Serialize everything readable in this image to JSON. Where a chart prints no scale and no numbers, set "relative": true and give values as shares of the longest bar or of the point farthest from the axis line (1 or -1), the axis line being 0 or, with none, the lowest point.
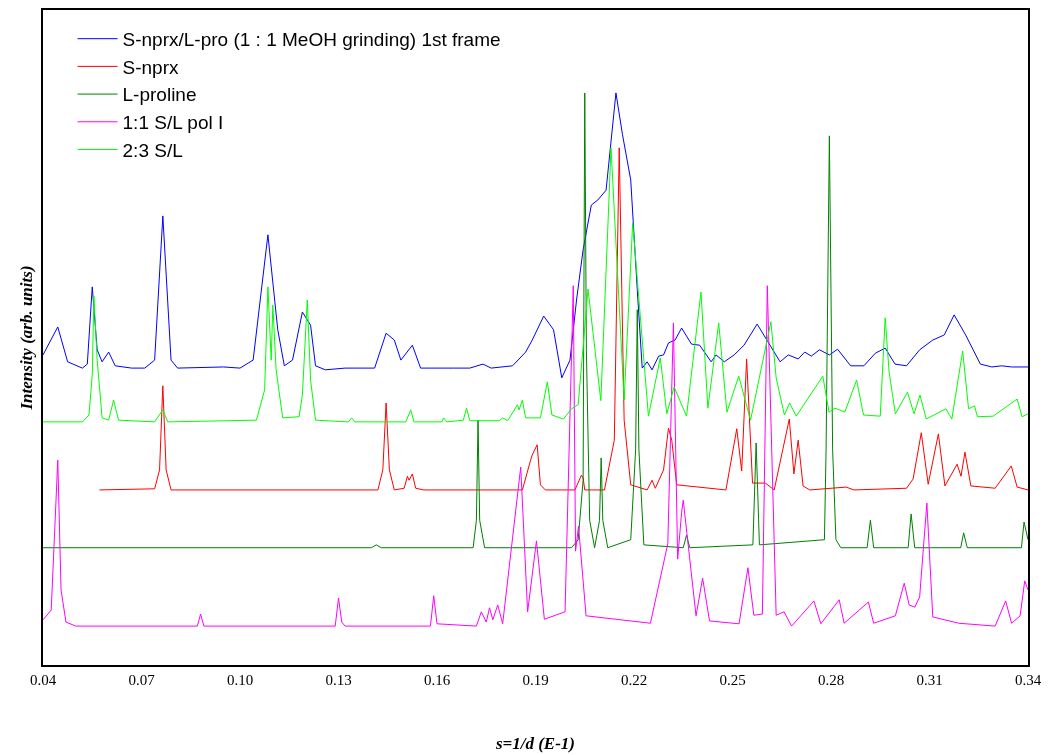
{
  "chart_data": {
    "type": "line",
    "relative": true,
    "xlabel": "s=1/d (E-1)",
    "ylabel": "Intensity (arb. units)",
    "xlim": [
      0.04,
      0.34
    ],
    "xticks": [
      0.04,
      0.07,
      {
        "value": 0.1,
        "label": "0.10"
      },
      0.13,
      0.16,
      0.19,
      0.22,
      0.25,
      0.28,
      0.31,
      0.34
    ],
    "grid": false,
    "legend": "top left",
    "marker": "none",
    "line_style": "solid",
    "series": [
      {
        "name": "S-nprx/L-pro (1 : 1 MeOH grinding) 1st frame",
        "color": "#0000ff",
        "x": [
          0.04,
          0.0445,
          0.0475,
          0.052,
          0.0535,
          0.055,
          0.0565,
          0.058,
          0.06,
          0.062,
          0.067,
          0.071,
          0.074,
          0.0765,
          0.079,
          0.081,
          0.095,
          0.1,
          0.104,
          0.1085,
          0.1115,
          0.1135,
          0.116,
          0.119,
          0.1215,
          0.123,
          0.126,
          0.132,
          0.141,
          0.1445,
          0.147,
          0.149,
          0.1525,
          0.155,
          0.165,
          0.17,
          0.174,
          0.1765,
          0.183,
          0.187,
          0.189,
          0.1925,
          0.1955,
          0.198,
          0.2005,
          0.2025,
          0.2045,
          0.207,
          0.209,
          0.2115,
          0.2145,
          0.2165,
          0.219,
          0.221,
          0.2225,
          0.224,
          0.2255,
          0.2275,
          0.229,
          0.2305,
          0.2325,
          0.2345,
          0.2375,
          0.24,
          0.2435,
          0.245,
          0.2475,
          0.2505,
          0.2535,
          0.2575,
          0.261,
          0.2645,
          0.267,
          0.27,
          0.272,
          0.274,
          0.2765,
          0.2795,
          0.282,
          0.286,
          0.29,
          0.2935,
          0.2965,
          0.2995,
          0.303,
          0.307,
          0.311,
          0.3145,
          0.3175,
          0.321,
          0.3255,
          0.329,
          0.332,
          0.335,
          0.34
        ],
        "values": [
          0.542,
          0.591,
          0.53,
          0.519,
          0.526,
          0.661,
          0.551,
          0.53,
          0.547,
          0.523,
          0.519,
          0.519,
          0.533,
          0.785,
          0.533,
          0.519,
          0.521,
          0.519,
          0.533,
          0.752,
          0.586,
          0.523,
          0.533,
          0.617,
          0.594,
          0.523,
          0.516,
          0.519,
          0.519,
          0.58,
          0.568,
          0.533,
          0.559,
          0.519,
          0.519,
          0.519,
          0.526,
          0.519,
          0.523,
          0.547,
          0.568,
          0.61,
          0.586,
          0.502,
          0.533,
          0.638,
          0.726,
          0.804,
          0.813,
          0.83,
          1.0,
          0.927,
          0.848,
          0.656,
          0.519,
          0.53,
          0.516,
          0.54,
          0.542,
          0.563,
          0.568,
          0.589,
          0.561,
          0.559,
          0.53,
          0.542,
          0.53,
          0.542,
          0.559,
          0.596,
          0.563,
          0.53,
          0.542,
          0.535,
          0.547,
          0.54,
          0.551,
          0.542,
          0.552,
          0.523,
          0.523,
          0.545,
          0.554,
          0.526,
          0.523,
          0.551,
          0.568,
          0.577,
          0.612,
          0.577,
          0.526,
          0.521,
          0.523,
          0.521,
          0.521
        ]
      },
      {
        "name": "S-nprx",
        "color": "#ff0000",
        "x": [
          0.0572,
          0.074,
          0.0755,
          0.0765,
          0.0775,
          0.079,
          0.142,
          0.1435,
          0.1445,
          0.1455,
          0.147,
          0.15,
          0.151,
          0.1515,
          0.1525,
          0.1535,
          0.156,
          0.186,
          0.1885,
          0.189,
          0.1905,
          0.1915,
          0.193,
          0.202,
          0.204,
          0.2045,
          0.205,
          0.211,
          0.214,
          0.2155,
          0.217,
          0.219,
          0.224,
          0.2255,
          0.2265,
          0.229,
          0.2305,
          0.2315,
          0.233,
          0.248,
          0.2513,
          0.2528,
          0.2543,
          0.2561,
          0.26,
          0.2627,
          0.2673,
          0.2687,
          0.27,
          0.2715,
          0.2735,
          0.2846,
          0.287,
          0.303,
          0.305,
          0.3075,
          0.3096,
          0.3127,
          0.3147,
          0.3184,
          0.3196,
          0.3208,
          0.3226,
          0.33,
          0.3349,
          0.3367,
          0.34
        ],
        "values": [
          0.306,
          0.308,
          0.341,
          0.488,
          0.341,
          0.306,
          0.306,
          0.341,
          0.458,
          0.341,
          0.306,
          0.309,
          0.33,
          0.323,
          0.334,
          0.309,
          0.306,
          0.306,
          0.358,
          0.367,
          0.385,
          0.315,
          0.306,
          0.306,
          0.332,
          0.327,
          0.306,
          0.306,
          0.393,
          0.904,
          0.428,
          0.315,
          0.306,
          0.323,
          0.309,
          0.341,
          0.414,
          0.393,
          0.315,
          0.306,
          0.413,
          0.339,
          0.535,
          0.318,
          0.318,
          0.306,
          0.43,
          0.334,
          0.393,
          0.313,
          0.306,
          0.311,
          0.306,
          0.309,
          0.325,
          0.406,
          0.316,
          0.404,
          0.313,
          0.351,
          0.33,
          0.372,
          0.313,
          0.309,
          0.348,
          0.311,
          0.306
        ]
      },
      {
        "name": "L-proline",
        "color": "#008000",
        "x": [
          0.04,
          0.14,
          0.1415,
          0.143,
          0.171,
          0.172,
          0.1725,
          0.173,
          0.1745,
          0.201,
          0.203,
          0.2045,
          0.205,
          0.2055,
          0.2065,
          0.208,
          0.2095,
          0.21,
          0.2105,
          0.212,
          0.219,
          0.2205,
          0.221,
          0.2215,
          0.223,
          0.235,
          0.236,
          0.237,
          0.2562,
          0.2572,
          0.2582,
          0.278,
          0.2785,
          0.2795,
          0.2805,
          0.2815,
          0.283,
          0.291,
          0.292,
          0.293,
          0.3035,
          0.3044,
          0.3055,
          0.3195,
          0.3204,
          0.3215,
          0.338,
          0.3388,
          0.34
        ],
        "values": [
          0.205,
          0.205,
          0.21,
          0.205,
          0.205,
          0.253,
          0.428,
          0.253,
          0.205,
          0.205,
          0.219,
          0.323,
          1.0,
          0.551,
          0.253,
          0.205,
          0.253,
          0.362,
          0.253,
          0.205,
          0.219,
          0.376,
          0.621,
          0.376,
          0.21,
          0.205,
          0.227,
          0.205,
          0.21,
          0.388,
          0.21,
          0.219,
          0.376,
          0.925,
          0.376,
          0.219,
          0.205,
          0.205,
          0.253,
          0.205,
          0.205,
          0.264,
          0.205,
          0.205,
          0.231,
          0.205,
          0.205,
          0.25,
          0.219
        ]
      },
      {
        "name": "1:1 S/L pol I",
        "color": "#ff00ff",
        "x": [
          0.04,
          0.0425,
          0.0445,
          0.0455,
          0.047,
          0.05,
          0.087,
          0.088,
          0.089,
          0.129,
          0.13,
          0.131,
          0.132,
          0.158,
          0.159,
          0.16,
          0.172,
          0.1735,
          0.175,
          0.176,
          0.177,
          0.1785,
          0.18,
          0.1855,
          0.1876,
          0.1903,
          0.1927,
          0.199,
          0.2015,
          0.2022,
          0.2031,
          0.2054,
          0.225,
          0.2303,
          0.232,
          0.2333,
          0.2345,
          0.235,
          0.2389,
          0.2409,
          0.243,
          0.252,
          0.2547,
          0.2565,
          0.2591,
          0.2606,
          0.2633,
          0.2657,
          0.268,
          0.2748,
          0.2769,
          0.2825,
          0.284,
          0.2914,
          0.293,
          0.2996,
          0.3023,
          0.3038,
          0.3055,
          0.307,
          0.3092,
          0.311,
          0.3189,
          0.33,
          0.3332,
          0.335,
          0.3376,
          0.339,
          0.34
        ],
        "values": [
          0.079,
          0.096,
          0.358,
          0.131,
          0.075,
          0.068,
          0.068,
          0.089,
          0.068,
          0.068,
          0.117,
          0.075,
          0.068,
          0.068,
          0.121,
          0.072,
          0.068,
          0.093,
          0.075,
          0.1,
          0.079,
          0.105,
          0.072,
          0.346,
          0.093,
          0.217,
          0.08,
          0.093,
          0.663,
          0.199,
          0.243,
          0.086,
          0.073,
          0.212,
          0.598,
          0.185,
          0.267,
          0.288,
          0.086,
          0.152,
          0.077,
          0.072,
          0.17,
          0.087,
          0.089,
          0.663,
          0.087,
          0.093,
          0.068,
          0.112,
          0.072,
          0.114,
          0.073,
          0.11,
          0.073,
          0.086,
          0.143,
          0.105,
          0.101,
          0.119,
          0.283,
          0.084,
          0.073,
          0.068,
          0.112,
          0.073,
          0.086,
          0.147,
          0.131
        ]
      },
      {
        "name": "2:3 S/L",
        "color": "#00ff00",
        "x": [
          0.04,
          0.052,
          0.054,
          0.055,
          0.0555,
          0.0565,
          0.058,
          0.06,
          0.0615,
          0.063,
          0.074,
          0.0765,
          0.078,
          0.105,
          0.1075,
          0.1085,
          0.1095,
          0.11,
          0.111,
          0.113,
          0.118,
          0.119,
          0.1205,
          0.1215,
          0.123,
          0.133,
          0.134,
          0.135,
          0.1505,
          0.152,
          0.153,
          0.1615,
          0.162,
          0.163,
          0.168,
          0.169,
          0.17,
          0.179,
          0.18,
          0.1815,
          0.1845,
          0.185,
          0.186,
          0.187,
          0.1915,
          0.1936,
          0.195,
          0.1985,
          0.201,
          0.203,
          0.206,
          0.2099,
          0.213,
          0.217,
          0.2196,
          0.2244,
          0.228,
          0.23,
          0.2322,
          0.236,
          0.2404,
          0.2425,
          0.2458,
          0.2483,
          0.2519,
          0.2555,
          0.2617,
          0.2633,
          0.2658,
          0.2674,
          0.2694,
          0.2775,
          0.2794,
          0.2812,
          0.2842,
          0.2878,
          0.2899,
          0.295,
          0.2965,
          0.2977,
          0.2996,
          0.3033,
          0.3053,
          0.3071,
          0.309,
          0.315,
          0.3168,
          0.3201,
          0.3219,
          0.3237,
          0.3246,
          0.3294,
          0.3367,
          0.3382,
          0.34
        ],
        "values": [
          0.425,
          0.425,
          0.437,
          0.507,
          0.645,
          0.533,
          0.432,
          0.428,
          0.463,
          0.428,
          0.425,
          0.446,
          0.425,
          0.428,
          0.481,
          0.661,
          0.533,
          0.629,
          0.516,
          0.432,
          0.434,
          0.472,
          0.638,
          0.498,
          0.428,
          0.425,
          0.432,
          0.425,
          0.425,
          0.446,
          0.425,
          0.425,
          0.432,
          0.425,
          0.428,
          0.449,
          0.427,
          0.427,
          0.432,
          0.427,
          0.455,
          0.446,
          0.463,
          0.432,
          0.432,
          0.495,
          0.437,
          0.43,
          0.448,
          0.455,
          0.657,
          0.462,
          0.904,
          0.463,
          0.773,
          0.435,
          0.537,
          0.439,
          0.486,
          0.435,
          0.652,
          0.449,
          0.598,
          0.442,
          0.505,
          0.428,
          0.6,
          0.502,
          0.437,
          0.458,
          0.435,
          0.505,
          0.442,
          0.449,
          0.442,
          0.498,
          0.437,
          0.435,
          0.607,
          0.512,
          0.439,
          0.477,
          0.439,
          0.472,
          0.43,
          0.448,
          0.43,
          0.549,
          0.448,
          0.453,
          0.434,
          0.435,
          0.465,
          0.434,
          0.439
        ]
      }
    ]
  }
}
